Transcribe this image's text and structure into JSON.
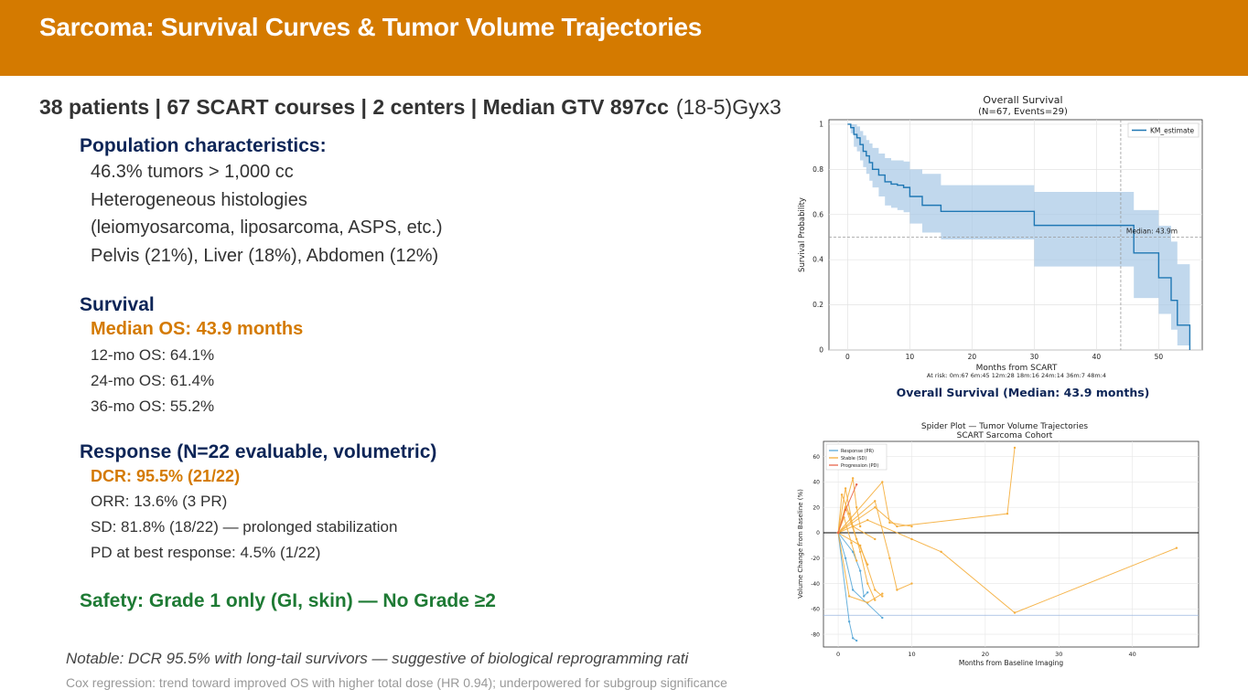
{
  "slide": {
    "title": "Sarcoma: Survival Curves & Tumor Volume Trajectories",
    "stats_bold": "38 patients | 67 SCART courses | 2 centers | Median GTV 897cc",
    "stats_dose": "(18-5)Gyx3",
    "colors": {
      "banner": "#D47A00",
      "navy": "#0D2557",
      "orange": "#D47A00",
      "green": "#1E7A34"
    }
  },
  "population": {
    "heading": "Population characteristics:",
    "lines": [
      "46.3% tumors > 1,000 cc",
      "Heterogeneous histologies",
      "(leiomyosarcoma, liposarcoma, ASPS, etc.)",
      "Pelvis (21%), Liver (18%), Abdomen (12%)"
    ]
  },
  "survival": {
    "heading": "Survival",
    "median": "Median OS: 43.9 months",
    "lines": [
      "12-mo OS: 64.1%",
      "24-mo OS: 61.4%",
      "36-mo OS: 55.2%"
    ]
  },
  "response": {
    "heading": "Response (N=22 evaluable, volumetric)",
    "dcr": "DCR: 95.5% (21/22)",
    "lines": [
      "ORR: 13.6% (3 PR)",
      "SD: 81.8% (18/22) — prolonged stabilization",
      "PD at best response: 4.5% (1/22)"
    ]
  },
  "safety": "Safety: Grade 1 only (GI, skin) — No Grade ≥2",
  "notable": "Notable: DCR 95.5% with long-tail survivors — suggestive of biological reprogramming rati",
  "cox": "Cox regression: trend toward improved OS with higher total dose (HR 0.94); underpowered for subgroup significance",
  "chart_data": [
    {
      "type": "line",
      "title": "Overall Survival",
      "subtitle": "(N=67, Events=29)",
      "xlabel": "Months from SCART",
      "ylabel": "Survival Probability",
      "caption": "Overall Survival (Median: 43.9 months)",
      "at_risk": "At risk: 0m:67  6m:45  12m:28  18m:16  24m:14  36m:7  48m:4",
      "xlim": [
        -3,
        57
      ],
      "ylim": [
        0,
        1.02
      ],
      "xticks": [
        0,
        10,
        20,
        30,
        40,
        50
      ],
      "yticks": [
        0.0,
        0.2,
        0.4,
        0.6,
        0.8,
        1.0
      ],
      "legend": {
        "label": "KM_estimate",
        "position": "top-right"
      },
      "median_annotation": {
        "x": 43.9,
        "y": 0.5,
        "label": "Median: 43.9m"
      },
      "series": [
        {
          "name": "KM_estimate",
          "color": "#1F77B4",
          "ci_color": "#A6C8E6",
          "x": [
            0,
            0.5,
            1,
            1.5,
            2,
            2.5,
            3,
            3.5,
            4,
            5,
            6,
            7,
            8,
            9,
            10,
            12,
            15,
            20,
            24,
            30,
            36,
            40,
            43.9,
            46,
            48,
            50,
            52,
            53,
            55
          ],
          "y": [
            1.0,
            0.985,
            0.955,
            0.94,
            0.91,
            0.88,
            0.86,
            0.83,
            0.8,
            0.775,
            0.745,
            0.735,
            0.73,
            0.72,
            0.68,
            0.641,
            0.614,
            0.614,
            0.614,
            0.552,
            0.552,
            0.552,
            0.552,
            0.43,
            0.43,
            0.32,
            0.22,
            0.11,
            0.0
          ],
          "ci_upper": [
            1.0,
            1.0,
            1.0,
            0.99,
            0.97,
            0.95,
            0.93,
            0.915,
            0.895,
            0.87,
            0.85,
            0.84,
            0.84,
            0.835,
            0.8,
            0.78,
            0.73,
            0.73,
            0.73,
            0.7,
            0.7,
            0.7,
            0.7,
            0.62,
            0.62,
            0.55,
            0.48,
            0.38,
            0.0
          ],
          "ci_lower": [
            1.0,
            0.96,
            0.9,
            0.88,
            0.84,
            0.81,
            0.78,
            0.75,
            0.72,
            0.68,
            0.64,
            0.63,
            0.62,
            0.61,
            0.56,
            0.52,
            0.49,
            0.49,
            0.49,
            0.37,
            0.37,
            0.37,
            0.37,
            0.23,
            0.23,
            0.16,
            0.09,
            0.02,
            0.0
          ]
        }
      ]
    },
    {
      "type": "line",
      "title": "Spider Plot — Tumor Volume Trajectories",
      "subtitle": "SCART Sarcoma Cohort",
      "xlabel": "Months from Baseline Imaging",
      "ylabel": "Volume Change from Baseline (%)",
      "xlim": [
        -2,
        49
      ],
      "ylim": [
        -90,
        72
      ],
      "xticks": [
        0,
        10,
        20,
        30,
        40
      ],
      "yticks": [
        -80,
        -60,
        -40,
        -20,
        0,
        20,
        40,
        60
      ],
      "reference_lines": [
        {
          "y": 0,
          "color": "#000000"
        },
        {
          "y": -65,
          "color": "#9CB6E0"
        }
      ],
      "legend": {
        "position": "top-left"
      },
      "series": [
        {
          "name": "Response (PR)",
          "color": "#5AA9D8",
          "tracks": [
            [
              [
                0,
                0
              ],
              [
                1.5,
                -70
              ],
              [
                2,
                -83
              ],
              [
                2.5,
                -85
              ]
            ],
            [
              [
                0,
                0
              ],
              [
                1,
                -20
              ],
              [
                2,
                -45
              ],
              [
                6,
                -67
              ]
            ],
            [
              [
                0,
                0
              ],
              [
                2,
                -15
              ],
              [
                3,
                -30
              ],
              [
                3.5,
                -50
              ],
              [
                4,
                -47
              ]
            ]
          ]
        },
        {
          "name": "Stable (SD)",
          "color": "#F5AE3C",
          "tracks": [
            [
              [
                0,
                0
              ],
              [
                5,
                20
              ],
              [
                8,
                5
              ],
              [
                23,
                15
              ],
              [
                24,
                67
              ]
            ],
            [
              [
                0,
                0
              ],
              [
                2,
                43
              ],
              [
                2.5,
                20
              ],
              [
                3,
                5
              ]
            ],
            [
              [
                0,
                0
              ],
              [
                6,
                40
              ],
              [
                7,
                8
              ],
              [
                10,
                5
              ]
            ],
            [
              [
                0,
                0
              ],
              [
                5,
                25
              ],
              [
                7,
                -20
              ],
              [
                8,
                -45
              ],
              [
                10,
                -40
              ]
            ],
            [
              [
                0,
                0
              ],
              [
                3,
                -10
              ],
              [
                5,
                -45
              ],
              [
                6,
                -50
              ]
            ],
            [
              [
                0,
                0
              ],
              [
                1.5,
                -50
              ],
              [
                4,
                -55
              ],
              [
                6,
                -48
              ]
            ],
            [
              [
                0,
                0
              ],
              [
                4,
                10
              ],
              [
                10,
                -5
              ],
              [
                14,
                -15
              ],
              [
                24,
                -63
              ],
              [
                46,
                -12
              ]
            ],
            [
              [
                0,
                0
              ],
              [
                1,
                20
              ],
              [
                2.5,
                -5
              ],
              [
                4,
                -25
              ]
            ],
            [
              [
                0,
                0
              ],
              [
                0.5,
                30
              ],
              [
                1.5,
                15
              ],
              [
                3,
                -15
              ],
              [
                4,
                -40
              ],
              [
                5,
                -53
              ]
            ],
            [
              [
                0,
                0
              ],
              [
                1,
                35
              ],
              [
                2,
                5
              ],
              [
                5,
                -5
              ]
            ],
            [
              [
                0,
                0
              ],
              [
                0.8,
                12
              ],
              [
                1.8,
                -8
              ],
              [
                2.5,
                -22
              ]
            ]
          ]
        },
        {
          "name": "Progression (PD)",
          "color": "#E8654C",
          "tracks": [
            [
              [
                0,
                0
              ],
              [
                1,
                18
              ],
              [
                2.5,
                38
              ]
            ]
          ]
        }
      ]
    }
  ]
}
